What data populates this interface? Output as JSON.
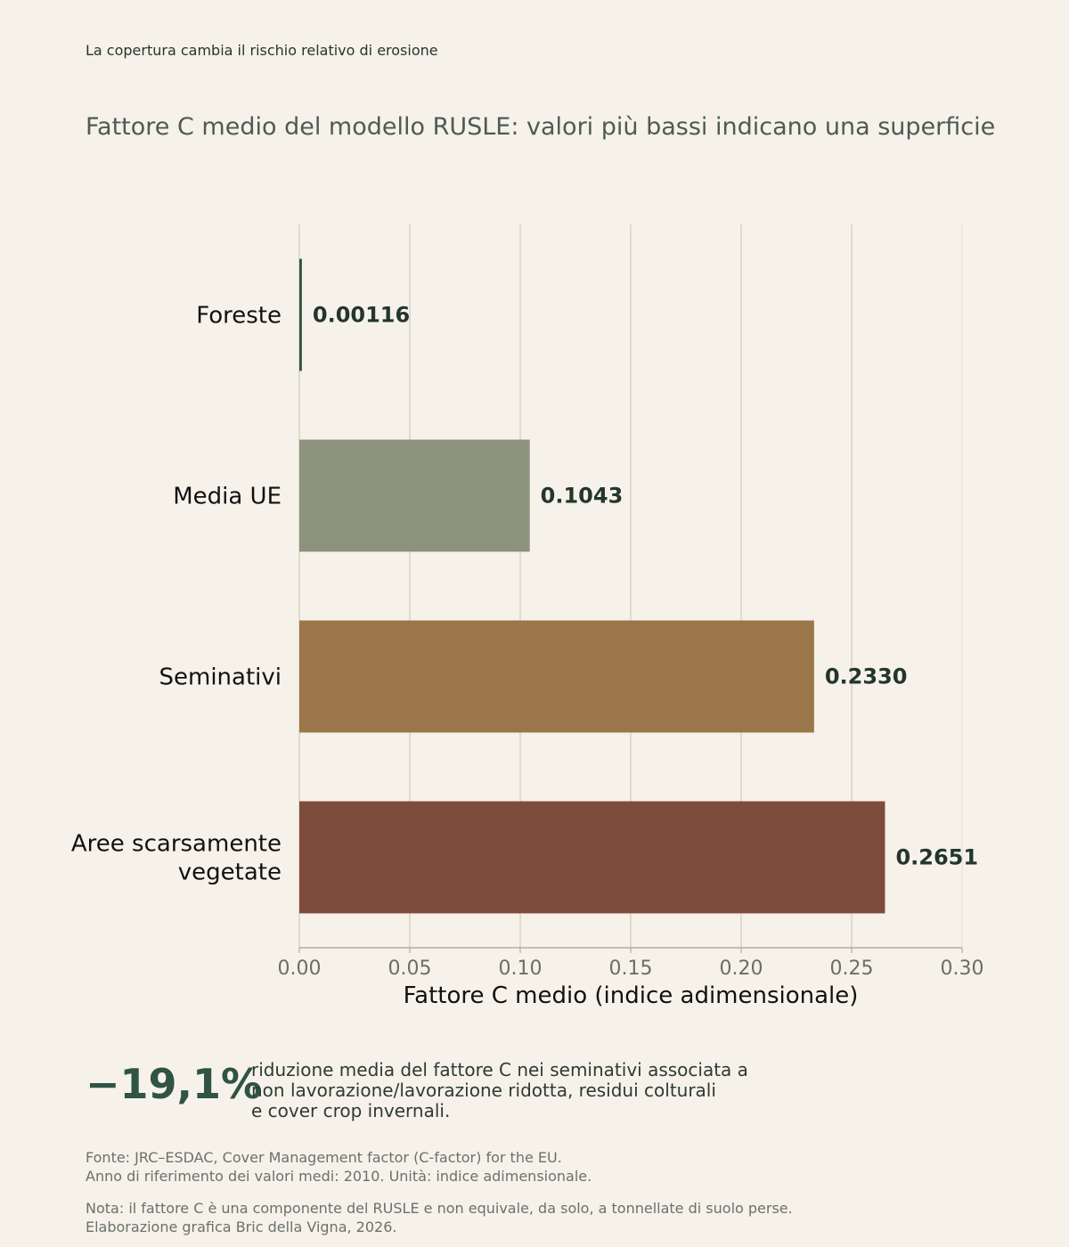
{
  "kicker": "La copertura cambia il rischio relativo di erosione",
  "headline": "Fattore C medio del modello RUSLE: valori più bassi indicano una superficie",
  "chart_data": {
    "type": "bar",
    "orientation": "horizontal",
    "categories": [
      "Foreste",
      "Media UE",
      "Seminativi",
      "Aree scarsamente vegetate"
    ],
    "category_lines": [
      [
        "Foreste"
      ],
      [
        "Media UE"
      ],
      [
        "Seminativi"
      ],
      [
        "Aree scarsamente",
        "vegetate"
      ]
    ],
    "values": [
      0.00116,
      0.1043,
      0.233,
      0.2651
    ],
    "value_labels": [
      "0.00116",
      "0.1043",
      "0.2330",
      "0.2651"
    ],
    "colors": [
      "#2f5443",
      "#8c927b",
      "#9b764a",
      "#7f4b3d"
    ],
    "xlabel": "Fattore C medio (indice adimensionale)",
    "ylabel": "",
    "xlim": [
      0,
      0.3
    ],
    "xticks": [
      0,
      0.05,
      0.1,
      0.15,
      0.2,
      0.25,
      0.3
    ],
    "xtick_labels": [
      "0.00",
      "0.05",
      "0.10",
      "0.15",
      "0.20",
      "0.25",
      "0.30"
    ],
    "grid": "vertical",
    "legend": "none"
  },
  "stat": {
    "value": "−19,1%",
    "lines": [
      "riduzione media del fattore C nei seminativi associata a",
      "non lavorazione/lavorazione ridotta, residui colturali",
      "e cover crop invernali."
    ]
  },
  "source_lines": [
    "Fonte: JRC–ESDAC, Cover Management factor (C-factor) for the EU.",
    "Anno di riferimento dei valori medi: 2010. Unità: indice adimensionale."
  ],
  "note_lines": [
    "Nota: il fattore C è una componente del RUSLE e non equivale, da solo, a tonnellate di suolo perse.",
    "Elaborazione grafica Bric della Vigna, 2026."
  ]
}
